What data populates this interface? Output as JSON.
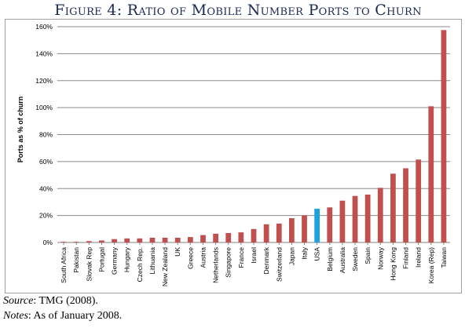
{
  "figure": {
    "title": "Figure 4: Ratio of Mobile Number Ports to Churn",
    "source_label": "Source",
    "source_text": ": TMG (2008).",
    "notes_label": "Notes",
    "notes_text": ": As of January 2008."
  },
  "chart_data": {
    "type": "bar",
    "title": "Figure 4: Ratio of Mobile Number Ports to Churn",
    "xlabel": "",
    "ylabel": "Ports as % of churn",
    "ylim": [
      0,
      160
    ],
    "yticks": [
      0,
      20,
      40,
      60,
      80,
      100,
      120,
      140,
      160
    ],
    "ytick_labels": [
      "0%",
      "20%",
      "40%",
      "60%",
      "80%",
      "100%",
      "120%",
      "140%",
      "160%"
    ],
    "grid": true,
    "categories": [
      "South Africa",
      "Pakistan",
      "Slovak Rep",
      "Portugal",
      "Germany",
      "Hungary",
      "Czech Rep.",
      "Lithuania",
      "New Zealand",
      "UK",
      "Greece",
      "Austria",
      "Netherlands",
      "Singapore",
      "France",
      "Israel",
      "Denmark",
      "Switzerland",
      "Japan",
      "Italy",
      "USA",
      "Belgium",
      "Australia",
      "Sweden",
      "Spain",
      "Norway",
      "Hong Kong",
      "Finland",
      "Ireland",
      "Korea (Rep)",
      "Taiwan"
    ],
    "values": [
      0.5,
      0.5,
      1,
      1.5,
      2.5,
      3,
      3,
      3.5,
      3.5,
      3.5,
      4,
      5.5,
      6.5,
      7,
      7.5,
      10,
      13.5,
      14,
      18,
      20,
      25,
      26,
      31,
      34.5,
      35.5,
      40.5,
      51,
      55,
      61.5,
      101,
      157.5
    ],
    "colors": {
      "default_bar": "#c0504d",
      "highlight_bar": "#1ea1e0",
      "gridline": "#8a8a8a",
      "axis": "#808080"
    },
    "highlight_category": "USA"
  }
}
